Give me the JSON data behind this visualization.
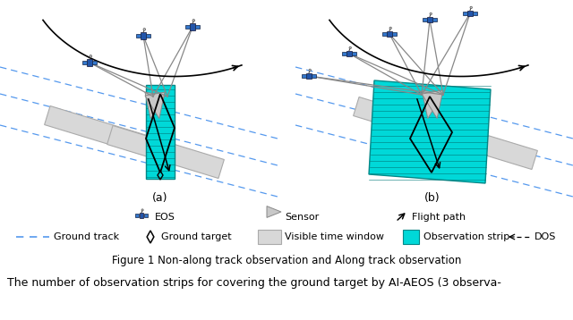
{
  "bg_color": "#ffffff",
  "fig_width": 6.4,
  "fig_height": 3.58,
  "dpi": 100,
  "title": "Figure 1 Non-along track observation and Along track observation",
  "subtitle_a": "(a)",
  "subtitle_b": "(b)",
  "ground_track_color": "#5599ee",
  "cyan_color": "#00d8d8",
  "gray_rect_fc": "#d8d8d8",
  "gray_rect_ec": "#aaaaaa",
  "sensor_fc": "#c8c8c8",
  "sensor_ec": "#888888",
  "sat_body_fc": "#2255aa",
  "sat_panel_fc": "#3377cc",
  "line_color": "#888888",
  "black": "#000000",
  "bottom_text": "The number of observation strips for covering the ground target by AI-AEOS (3 observa-"
}
